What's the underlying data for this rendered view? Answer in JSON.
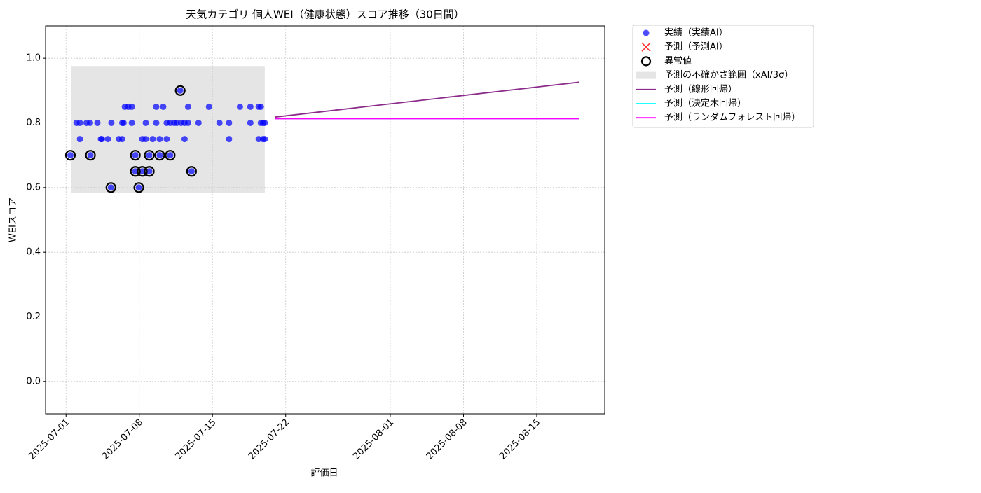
{
  "chart_data": {
    "type": "scatter",
    "title": "天気カテゴリ 個人WEI（健康状態）スコア推移（30日間）",
    "xlabel": "評価日",
    "ylabel": "WEIスコア",
    "xlim": [
      "2025-06-29T01:00",
      "2025-08-21T12:00"
    ],
    "ylim": [
      -0.1,
      1.1
    ],
    "xticks": [
      "2025-07-01",
      "2025-07-08",
      "2025-07-15",
      "2025-07-22",
      "2025-08-01",
      "2025-08-08",
      "2025-08-15"
    ],
    "yticks": [
      {
        "value": 0,
        "label": "0.0"
      },
      0.2,
      0.4,
      0.6,
      0.8,
      {
        "value": 1,
        "label": "1.0"
      }
    ],
    "grid": true,
    "legend": "outside upper right",
    "series": [
      {
        "name": "実績（実績AI）",
        "kind": "scatter",
        "color": "#0000ff",
        "x": [
          "2025-07-01T10:00",
          "2025-07-02T00:00",
          "2025-07-02T08:00",
          "2025-07-02T08:00",
          "2025-07-02T23:00",
          "2025-07-03T07:00",
          "2025-07-03T08:00",
          "2025-07-04T00:00",
          "2025-07-04T08:00",
          "2025-07-04T10:00",
          "2025-07-05T00:00",
          "2025-07-05T07:00",
          "2025-07-05T08:00",
          "2025-07-06T01:00",
          "2025-07-06T09:00",
          "2025-07-06T09:00",
          "2025-07-06T12:00",
          "2025-07-06T15:00",
          "2025-07-06T23:00",
          "2025-07-07T07:00",
          "2025-07-07T07:00",
          "2025-07-07T15:00",
          "2025-07-07T15:00",
          "2025-07-07T23:00",
          "2025-07-08T07:00",
          "2025-07-08T07:00",
          "2025-07-08T15:00",
          "2025-07-08T15:00",
          "2025-07-08T23:00",
          "2025-07-08T23:00",
          "2025-07-09T07:00",
          "2025-07-09T15:00",
          "2025-07-09T15:00",
          "2025-07-09T23:00",
          "2025-07-09T23:00",
          "2025-07-10T07:00",
          "2025-07-10T15:00",
          "2025-07-10T15:00",
          "2025-07-10T23:00",
          "2025-07-10T23:00",
          "2025-07-11T08:00",
          "2025-07-11T14:00",
          "2025-07-11T22:00",
          "2025-07-12T00:00",
          "2025-07-12T08:00",
          "2025-07-12T08:00",
          "2025-07-12T16:00",
          "2025-07-12T16:00",
          "2025-07-13T00:00",
          "2025-07-13T16:00",
          "2025-07-14T16:00",
          "2025-07-15T16:00",
          "2025-07-16T14:00",
          "2025-07-16T14:00",
          "2025-07-17T15:00",
          "2025-07-18T15:00",
          "2025-07-18T15:00",
          "2025-07-19T10:00",
          "2025-07-19T10:00",
          "2025-07-19T15:00",
          "2025-07-19T15:00",
          "2025-07-19T20:00",
          "2025-07-19T20:00",
          "2025-07-20T00:00",
          "2025-07-20T00:00"
        ],
        "values": [
          0.7,
          0.8,
          0.8,
          0.75,
          0.8,
          0.8,
          0.7,
          0.8,
          0.75,
          0.75,
          0.75,
          0.6,
          0.8,
          0.75,
          0.8,
          0.75,
          0.8,
          0.85,
          0.85,
          0.85,
          0.8,
          0.7,
          0.65,
          0.6,
          0.65,
          0.75,
          0.8,
          0.75,
          0.7,
          0.65,
          0.75,
          0.85,
          0.8,
          0.75,
          0.7,
          0.85,
          0.8,
          0.75,
          0.8,
          0.7,
          0.8,
          0.8,
          0.9,
          0.8,
          0.8,
          0.75,
          0.85,
          0.8,
          0.65,
          0.8,
          0.85,
          0.8,
          0.8,
          0.75,
          0.85,
          0.85,
          0.8,
          0.85,
          0.75,
          0.8,
          0.85,
          0.75,
          0.8,
          0.8,
          0.75
        ]
      },
      {
        "name": "予測（予測AI）",
        "kind": "cross",
        "color": "#ff0000",
        "x": [],
        "values": []
      },
      {
        "name": "異常値",
        "kind": "ring",
        "color": "#000000",
        "x": [
          "2025-07-01T10:00",
          "2025-07-03T08:00",
          "2025-07-05T07:00",
          "2025-07-07T15:00",
          "2025-07-07T15:00",
          "2025-07-07T23:00",
          "2025-07-08T07:00",
          "2025-07-08T23:00",
          "2025-07-08T23:00",
          "2025-07-09T23:00",
          "2025-07-10T23:00",
          "2025-07-11T22:00",
          "2025-07-13T00:00"
        ],
        "values": [
          0.7,
          0.7,
          0.6,
          0.7,
          0.65,
          0.6,
          0.65,
          0.7,
          0.65,
          0.7,
          0.7,
          0.9,
          0.65
        ]
      },
      {
        "name": "予測の不確かさ範囲（xAI/3σ）",
        "kind": "band",
        "color": "#cccccc",
        "x": [
          "2025-07-01T11:00",
          "2025-07-20T00:00"
        ],
        "lower": [
          0.583,
          0.583
        ],
        "upper": [
          0.976,
          0.976
        ]
      },
      {
        "name": "予測（線形回帰）",
        "kind": "line",
        "color": "#8b2c8b",
        "x": [
          "2025-07-20T23:00",
          "2025-08-19T02:00"
        ],
        "values": [
          0.818,
          0.926
        ]
      },
      {
        "name": "予測（決定木回帰）",
        "kind": "line",
        "color": "#00ffff",
        "x": [
          "2025-07-20T23:00",
          "2025-08-19T02:00"
        ],
        "values": [
          0.813,
          0.813
        ]
      },
      {
        "name": "予測（ランダムフォレスト回帰）",
        "kind": "line",
        "color": "#ff00ff",
        "x": [
          "2025-07-20T23:00",
          "2025-08-19T02:00"
        ],
        "values": [
          0.813,
          0.813
        ]
      }
    ]
  }
}
